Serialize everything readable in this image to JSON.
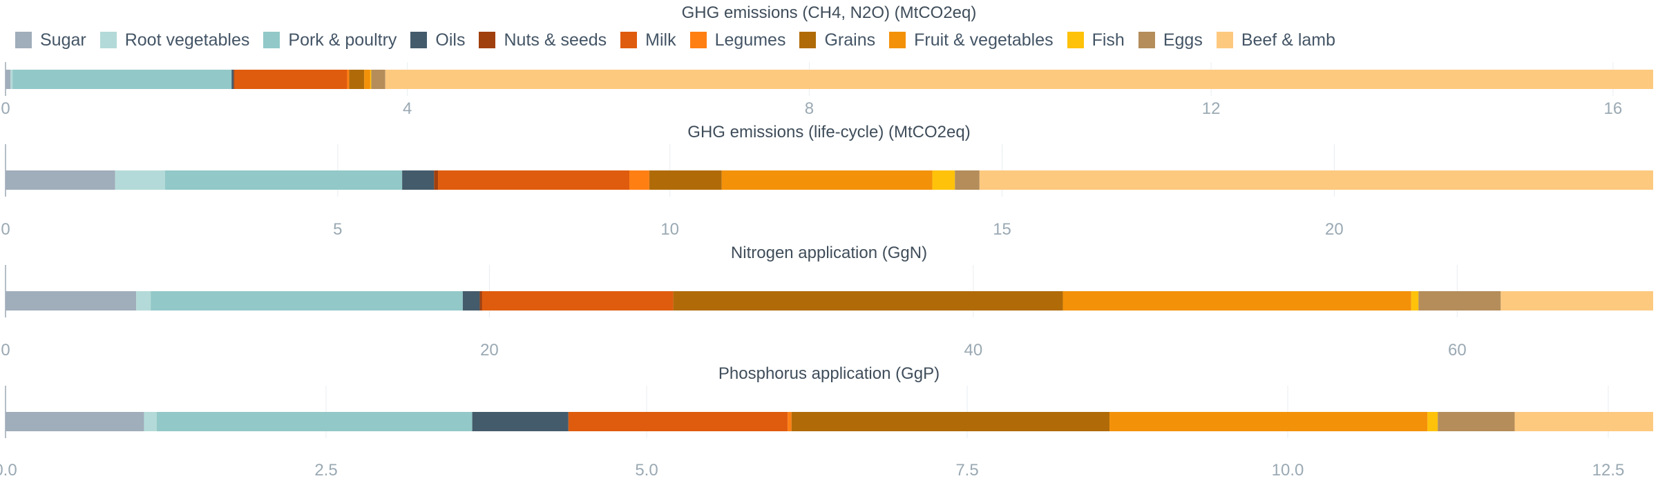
{
  "categories": [
    "Sugar",
    "Root vegetables",
    "Pork & poultry",
    "Oils",
    "Nuts & seeds",
    "Milk",
    "Legumes",
    "Grains",
    "Fruit & vegetables",
    "Fish",
    "Eggs",
    "Beef & lamb"
  ],
  "colors": [
    "#a0adba",
    "#b3dad8",
    "#92c8c8",
    "#445b6b",
    "#a1400f",
    "#df5c0e",
    "#ff7f13",
    "#b06b08",
    "#f39109",
    "#ffc20a",
    "#b48d5a",
    "#fdc97f"
  ],
  "chart_data": [
    {
      "type": "bar",
      "title": "GHG emissions (CH4, N2O) (MtCO2eq)",
      "stacked": true,
      "orientation": "horizontal",
      "xlim": [
        0,
        16.4
      ],
      "ticks": [
        0,
        4,
        8,
        12,
        16
      ],
      "tick_labels": [
        "0",
        "4",
        "8",
        "12",
        "16"
      ],
      "series": [
        {
          "name": "Sugar",
          "values": [
            0.05
          ]
        },
        {
          "name": "Root vegetables",
          "values": [
            0.02
          ]
        },
        {
          "name": "Pork & poultry",
          "values": [
            2.18
          ]
        },
        {
          "name": "Oils",
          "values": [
            0.02
          ]
        },
        {
          "name": "Nuts & seeds",
          "values": [
            0.01
          ]
        },
        {
          "name": "Milk",
          "values": [
            1.12
          ]
        },
        {
          "name": "Legumes",
          "values": [
            0.02
          ]
        },
        {
          "name": "Grains",
          "values": [
            0.15
          ]
        },
        {
          "name": "Fruit & vegetables",
          "values": [
            0.06
          ]
        },
        {
          "name": "Fish",
          "values": [
            0.01
          ]
        },
        {
          "name": "Eggs",
          "values": [
            0.14
          ]
        },
        {
          "name": "Beef & lamb",
          "values": [
            12.62
          ]
        }
      ]
    },
    {
      "type": "bar",
      "title": "GHG emissions (life-cycle) (MtCO2eq)",
      "stacked": true,
      "orientation": "horizontal",
      "xlim": [
        0,
        24.8
      ],
      "ticks": [
        0,
        5,
        10,
        15,
        20
      ],
      "tick_labels": [
        "0",
        "5",
        "10",
        "15",
        "20"
      ],
      "series": [
        {
          "name": "Sugar",
          "values": [
            1.65
          ]
        },
        {
          "name": "Root vegetables",
          "values": [
            0.75
          ]
        },
        {
          "name": "Pork & poultry",
          "values": [
            3.57
          ]
        },
        {
          "name": "Oils",
          "values": [
            0.48
          ]
        },
        {
          "name": "Nuts & seeds",
          "values": [
            0.06
          ]
        },
        {
          "name": "Milk",
          "values": [
            2.88
          ]
        },
        {
          "name": "Legumes",
          "values": [
            0.3
          ]
        },
        {
          "name": "Grains",
          "values": [
            1.09
          ]
        },
        {
          "name": "Fruit & vegetables",
          "values": [
            3.17
          ]
        },
        {
          "name": "Fish",
          "values": [
            0.34
          ]
        },
        {
          "name": "Eggs",
          "values": [
            0.37
          ]
        },
        {
          "name": "Beef & lamb",
          "values": [
            10.14
          ]
        }
      ]
    },
    {
      "type": "bar",
      "title": "Nitrogen application (GgN)",
      "stacked": true,
      "orientation": "horizontal",
      "xlim": [
        0,
        68.1
      ],
      "ticks": [
        0,
        20,
        40,
        60
      ],
      "tick_labels": [
        "0",
        "20",
        "40",
        "60"
      ],
      "series": [
        {
          "name": "Sugar",
          "values": [
            5.4
          ]
        },
        {
          "name": "Root vegetables",
          "values": [
            0.6
          ]
        },
        {
          "name": "Pork & poultry",
          "values": [
            12.9
          ]
        },
        {
          "name": "Oils",
          "values": [
            0.7
          ]
        },
        {
          "name": "Nuts & seeds",
          "values": [
            0.1
          ]
        },
        {
          "name": "Milk",
          "values": [
            7.9
          ]
        },
        {
          "name": "Legumes",
          "values": [
            0.0
          ]
        },
        {
          "name": "Grains",
          "values": [
            16.1
          ]
        },
        {
          "name": "Fruit & vegetables",
          "values": [
            14.4
          ]
        },
        {
          "name": "Fish",
          "values": [
            0.3
          ]
        },
        {
          "name": "Eggs",
          "values": [
            3.4
          ]
        },
        {
          "name": "Beef & lamb",
          "values": [
            6.3
          ]
        }
      ]
    },
    {
      "type": "bar",
      "title": "Phosphorus application (GgP)",
      "stacked": true,
      "orientation": "horizontal",
      "xlim": [
        0,
        12.85
      ],
      "ticks": [
        0,
        2.5,
        5,
        7.5,
        10,
        12.5
      ],
      "tick_labels": [
        "0.0",
        "2.5",
        "5.0",
        "7.5",
        "10.0",
        "12.5"
      ],
      "series": [
        {
          "name": "Sugar",
          "values": [
            1.08
          ]
        },
        {
          "name": "Root vegetables",
          "values": [
            0.1
          ]
        },
        {
          "name": "Pork & poultry",
          "values": [
            2.46
          ]
        },
        {
          "name": "Oils",
          "values": [
            0.75
          ]
        },
        {
          "name": "Nuts & seeds",
          "values": [
            0.0
          ]
        },
        {
          "name": "Milk",
          "values": [
            1.71
          ]
        },
        {
          "name": "Legumes",
          "values": [
            0.03
          ]
        },
        {
          "name": "Grains",
          "values": [
            2.48
          ]
        },
        {
          "name": "Fruit & vegetables",
          "values": [
            2.48
          ]
        },
        {
          "name": "Fish",
          "values": [
            0.08
          ]
        },
        {
          "name": "Eggs",
          "values": [
            0.6
          ]
        },
        {
          "name": "Beef & lamb",
          "values": [
            1.08
          ]
        }
      ]
    }
  ]
}
